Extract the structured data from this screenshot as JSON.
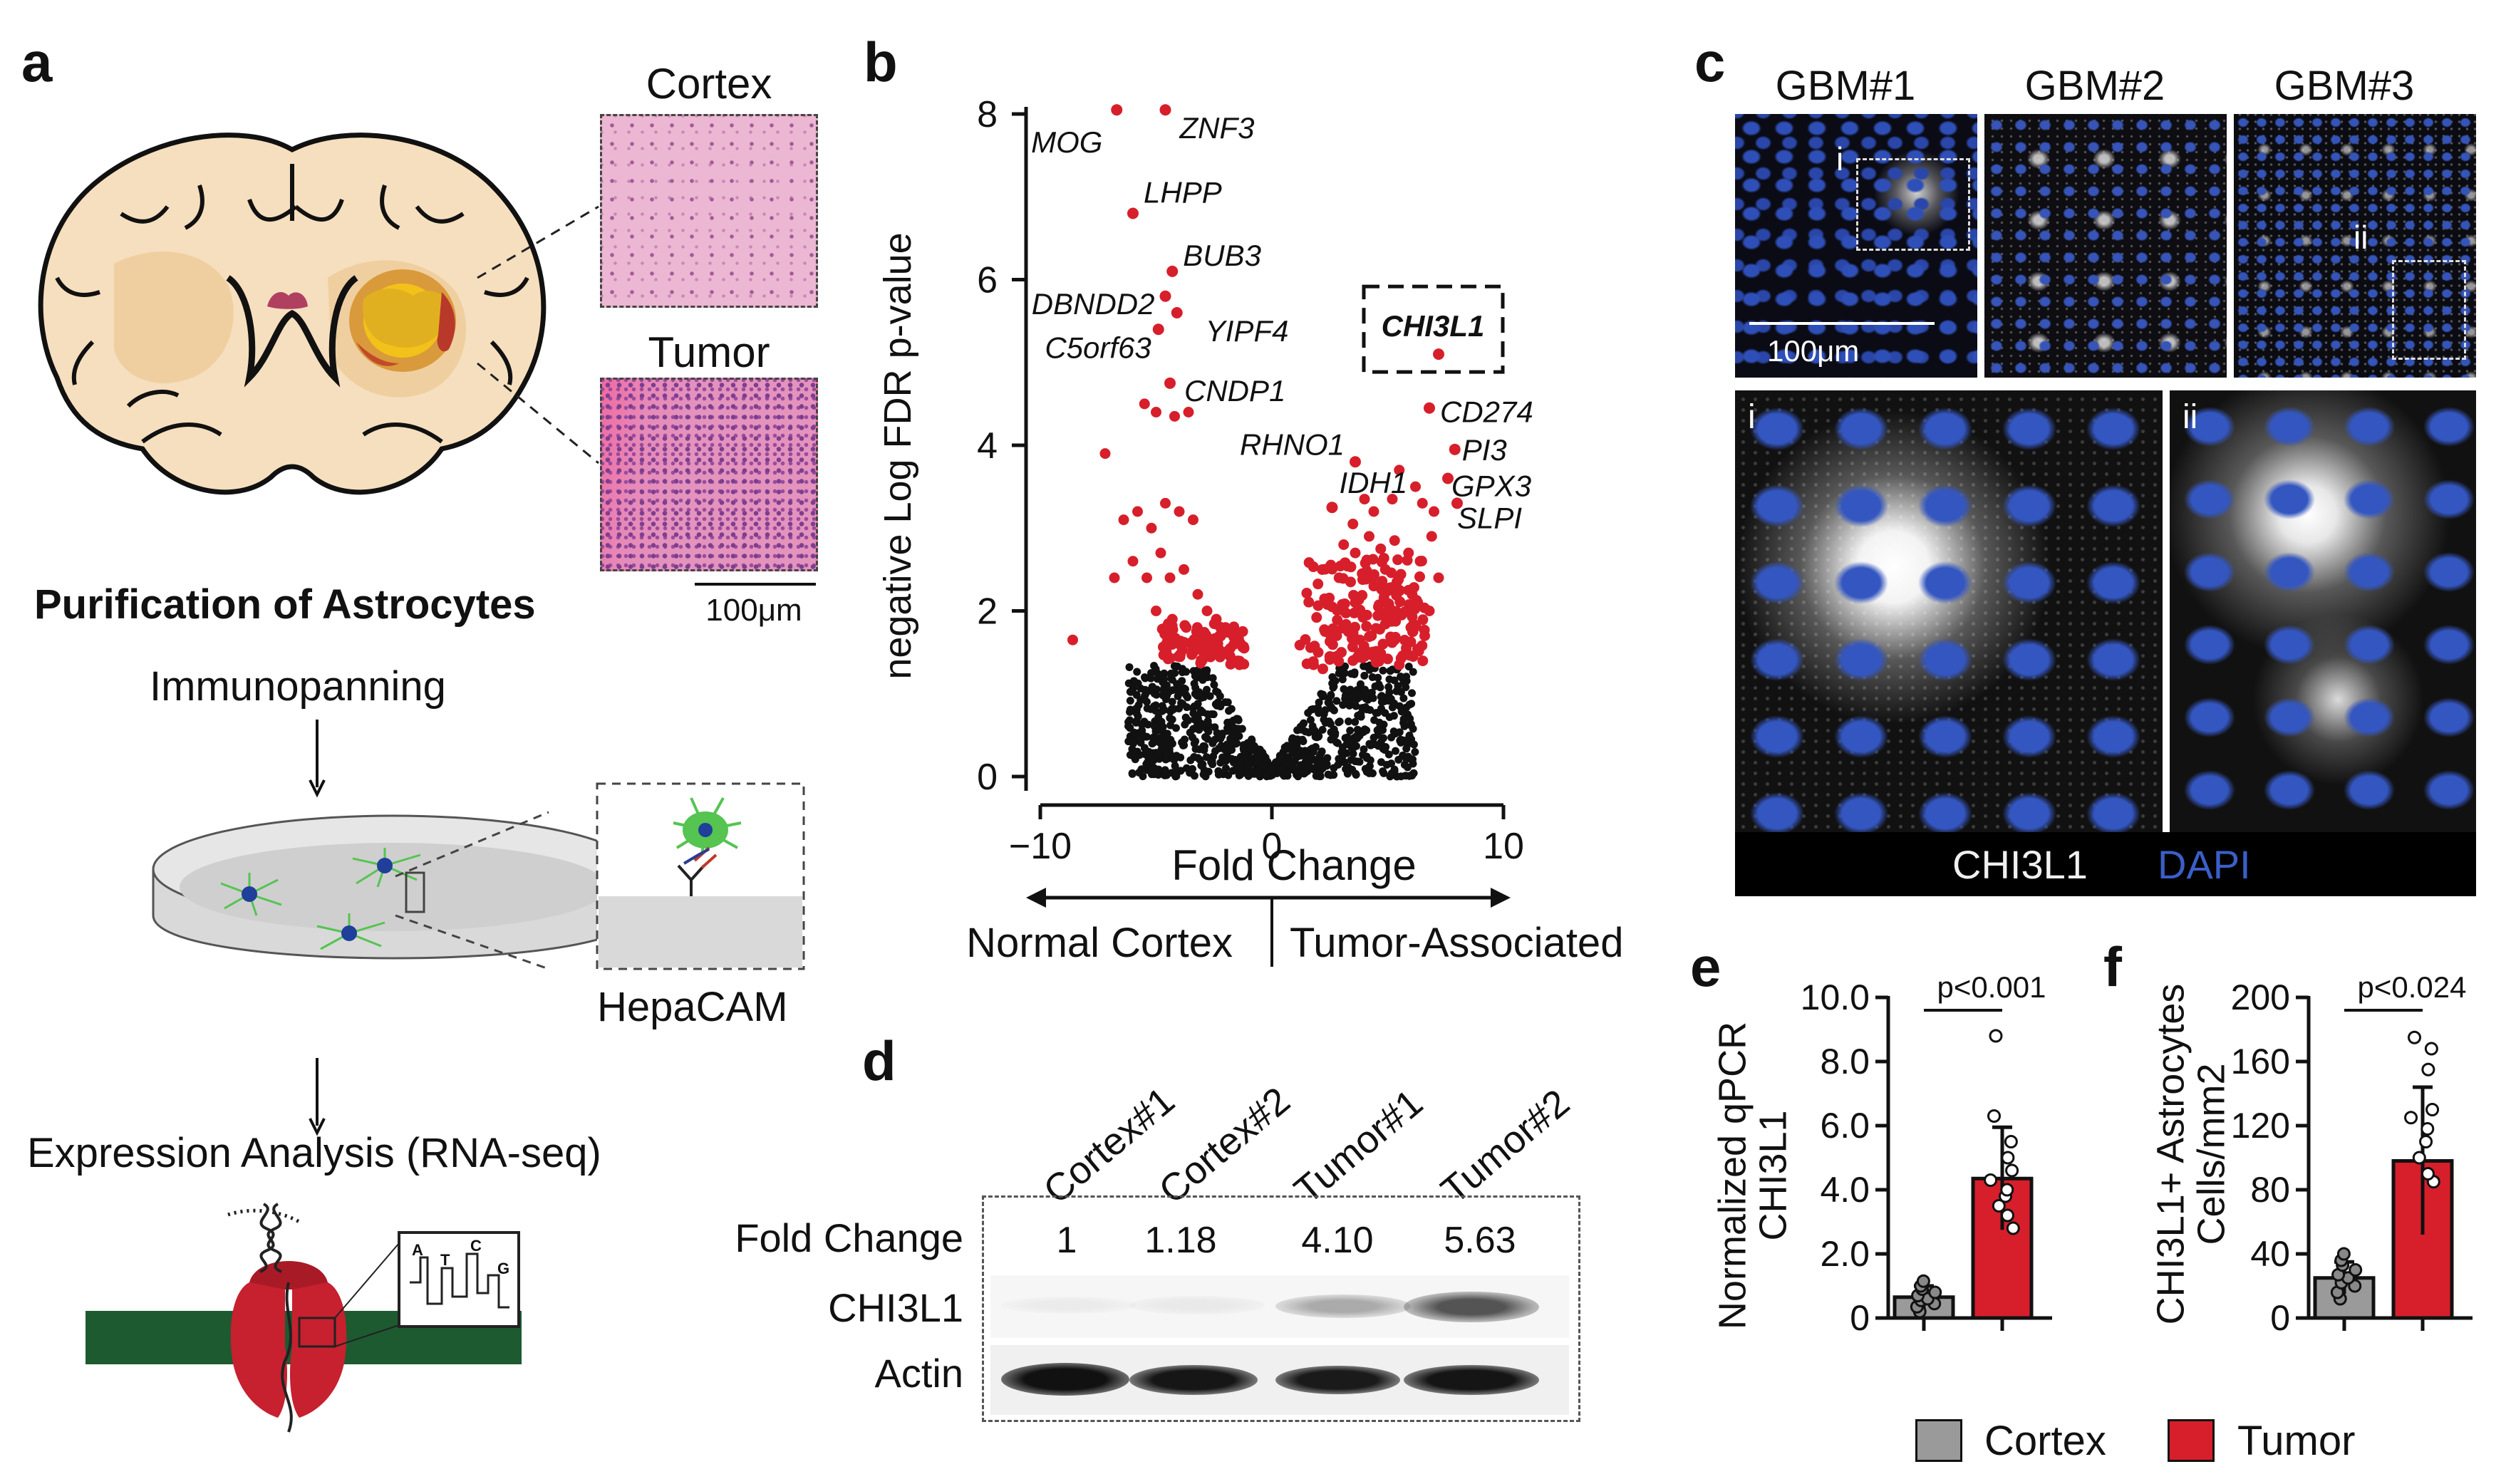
{
  "panel_a": {
    "label": "a",
    "cortex_label": "Cortex",
    "tumor_label": "Tumor",
    "scale_bar": "100μm",
    "purification_title": "Purification of Astrocytes",
    "step1": "Immunopanning",
    "hepacam_label": "HepaCAM",
    "step2": "Expression Analysis (RNA-seq)",
    "trace_letters": [
      "A",
      "T",
      "C",
      "G"
    ]
  },
  "panel_b": {
    "label": "b",
    "direction_left": "Normal Cortex",
    "direction_right": "Tumor-Associated"
  },
  "panel_c": {
    "label": "c",
    "columns": [
      "GBM#1",
      "GBM#2",
      "GBM#3"
    ],
    "inset_i": "i",
    "inset_ii": "ii",
    "scale_bar": "100μm",
    "legend_chi": "CHI3L1",
    "legend_dapi": "DAPI",
    "colors": {
      "dapi": "#3a5fc8",
      "chi": "#e8e8e8"
    }
  },
  "panel_d": {
    "label": "d",
    "lanes": [
      "Cortex#1",
      "Cortex#2",
      "Tumor#1",
      "Tumor#2"
    ],
    "fold_change_label": "Fold Change",
    "fold_changes": [
      "1",
      "1.18",
      "4.10",
      "5.63"
    ],
    "row_chi": "CHI3L1",
    "row_actin": "Actin",
    "chi_band_intensity": [
      0.03,
      0.06,
      0.35,
      0.75
    ]
  },
  "panel_e": {
    "label": "e",
    "p_value": "p<0.001"
  },
  "panel_f": {
    "label": "f",
    "p_value": "p<0.024"
  },
  "legend": {
    "cortex": "Cortex",
    "tumor": "Tumor"
  },
  "colors": {
    "tumor": "#d71f2b",
    "cortex": "#9a9a9a",
    "green_bar": "#1d5a30",
    "astro": "#55c451"
  },
  "chart_data": [
    {
      "type": "scatter",
      "panel": "b",
      "xlabel": "Fold Change",
      "ylabel": "negative Log FDR p-value",
      "xlim": [
        -10,
        10
      ],
      "ylim": [
        0,
        8
      ],
      "xticks": [
        -10,
        0,
        10
      ],
      "yticks": [
        0,
        2,
        4,
        6,
        8
      ],
      "xtick_labels": [
        "−10",
        "0",
        "10"
      ],
      "highlight_box_gene": "CHI3L1",
      "labeled_points": [
        {
          "gene": "MOG",
          "x": -6.7,
          "y": 8.05
        },
        {
          "gene": "ZNF3",
          "x": -4.6,
          "y": 8.05
        },
        {
          "gene": "LHPP",
          "x": -6.0,
          "y": 6.8
        },
        {
          "gene": "BUB3",
          "x": -4.3,
          "y": 6.1
        },
        {
          "gene": "DBNDD2",
          "x": -4.6,
          "y": 5.8
        },
        {
          "gene": "YIPF4",
          "x": -4.1,
          "y": 5.6
        },
        {
          "gene": "C5orf63",
          "x": -4.9,
          "y": 5.4
        },
        {
          "gene": "CNDP1",
          "x": -4.4,
          "y": 4.75
        },
        {
          "gene": "CHI3L1",
          "x": 7.2,
          "y": 5.1
        },
        {
          "gene": "CD274",
          "x": 6.8,
          "y": 4.45
        },
        {
          "gene": "PI3",
          "x": 7.9,
          "y": 3.95
        },
        {
          "gene": "RHNO1",
          "x": 3.6,
          "y": 3.8
        },
        {
          "gene": "GPX3",
          "x": 7.6,
          "y": 3.6
        },
        {
          "gene": "IDH1",
          "x": 2.6,
          "y": 3.25
        },
        {
          "gene": "SLPI",
          "x": 8.0,
          "y": 3.3
        }
      ],
      "other_points_left": [
        [
          -8.6,
          1.65
        ],
        [
          -7.2,
          3.9
        ],
        [
          -5.5,
          4.5
        ],
        [
          -5.0,
          4.4
        ],
        [
          -4.2,
          4.35
        ],
        [
          -3.6,
          4.4
        ],
        [
          -6.4,
          3.1
        ],
        [
          -5.8,
          3.2
        ],
        [
          -5.2,
          3.0
        ],
        [
          -4.6,
          3.3
        ],
        [
          -4.0,
          3.2
        ],
        [
          -3.4,
          3.1
        ],
        [
          -6.8,
          2.4
        ],
        [
          -6.0,
          2.6
        ],
        [
          -5.4,
          2.4
        ],
        [
          -4.8,
          2.7
        ],
        [
          -4.4,
          2.4
        ],
        [
          -3.8,
          2.5
        ],
        [
          -3.2,
          2.2
        ],
        [
          -2.8,
          2.0
        ],
        [
          -2.4,
          1.9
        ],
        [
          -2.0,
          1.8
        ],
        [
          -1.6,
          1.7
        ],
        [
          -1.2,
          1.55
        ],
        [
          -5.0,
          2.0
        ],
        [
          -4.3,
          1.9
        ],
        [
          -3.7,
          1.8
        ],
        [
          -3.1,
          1.65
        ],
        [
          -2.6,
          1.6
        ],
        [
          -2.1,
          1.5
        ],
        [
          -4.0,
          1.6
        ],
        [
          -3.4,
          1.5
        ],
        [
          -1.8,
          1.45
        ],
        [
          -1.4,
          1.35
        ]
      ],
      "other_points_right": [
        [
          5.5,
          3.7
        ],
        [
          6.2,
          3.5
        ],
        [
          5.2,
          3.35
        ],
        [
          4.4,
          3.2
        ],
        [
          6.5,
          3.3
        ],
        [
          7.0,
          3.2
        ],
        [
          3.1,
          2.8
        ],
        [
          3.6,
          2.7
        ],
        [
          4.2,
          2.9
        ],
        [
          4.7,
          2.75
        ],
        [
          5.3,
          2.85
        ],
        [
          5.9,
          2.7
        ],
        [
          6.4,
          2.6
        ],
        [
          2.9,
          2.4
        ],
        [
          3.4,
          2.35
        ],
        [
          3.9,
          2.45
        ],
        [
          4.4,
          2.3
        ],
        [
          4.9,
          2.5
        ],
        [
          5.4,
          2.35
        ],
        [
          5.9,
          2.25
        ],
        [
          6.3,
          2.1
        ],
        [
          2.6,
          2.05
        ],
        [
          3.1,
          2.0
        ],
        [
          3.6,
          2.1
        ],
        [
          4.1,
          1.95
        ],
        [
          4.6,
          2.05
        ],
        [
          5.1,
          1.9
        ],
        [
          5.6,
          1.95
        ],
        [
          6.0,
          1.8
        ],
        [
          2.3,
          1.75
        ],
        [
          2.8,
          1.7
        ],
        [
          3.3,
          1.75
        ],
        [
          3.8,
          1.65
        ],
        [
          4.3,
          1.7
        ],
        [
          4.8,
          1.6
        ],
        [
          5.3,
          1.65
        ],
        [
          5.8,
          1.55
        ],
        [
          6.1,
          1.45
        ],
        [
          2.0,
          1.5
        ],
        [
          2.5,
          1.45
        ],
        [
          3.0,
          1.5
        ],
        [
          3.5,
          1.4
        ],
        [
          4.0,
          1.45
        ],
        [
          4.5,
          1.38
        ],
        [
          5.0,
          1.42
        ],
        [
          5.5,
          1.35
        ],
        [
          1.8,
          1.35
        ],
        [
          2.2,
          1.3
        ],
        [
          6.6,
          1.7
        ],
        [
          6.8,
          2.0
        ],
        [
          7.2,
          2.4
        ],
        [
          6.9,
          2.9
        ],
        [
          3.5,
          3.05
        ],
        [
          4.0,
          3.35
        ]
      ]
    },
    {
      "type": "bar",
      "panel": "e",
      "ylabel": "Normalized qPCR CHI3L1",
      "categories": [
        "Cortex",
        "Tumor"
      ],
      "values": [
        0.65,
        4.35
      ],
      "errors": [
        0.35,
        1.6
      ],
      "ylim": [
        0,
        10
      ],
      "yticks": [
        0,
        2,
        4,
        6,
        8,
        10
      ],
      "ytick_labels": [
        "0",
        "2.0",
        "4.0",
        "6.0",
        "8.0",
        "10.0"
      ],
      "points": {
        "Cortex": [
          0.2,
          0.35,
          0.45,
          0.55,
          0.6,
          0.7,
          0.8,
          0.9,
          1.0,
          1.15
        ],
        "Tumor": [
          2.8,
          3.2,
          3.5,
          3.8,
          4.0,
          4.3,
          4.6,
          5.0,
          5.5,
          6.3,
          8.8
        ]
      }
    },
    {
      "type": "bar",
      "panel": "f",
      "ylabel": "CHI3L1+ Astrocytes Cells/mm2",
      "categories": [
        "Cortex",
        "Tumor"
      ],
      "values": [
        25,
        98
      ],
      "errors": [
        10,
        46
      ],
      "ylim": [
        0,
        200
      ],
      "yticks": [
        0,
        40,
        80,
        120,
        160,
        200
      ],
      "points": {
        "Cortex": [
          12,
          16,
          20,
          22,
          25,
          27,
          30,
          33,
          36,
          40
        ],
        "Tumor": [
          85,
          90,
          100,
          110,
          118,
          125,
          130,
          155,
          168,
          175
        ]
      }
    }
  ]
}
